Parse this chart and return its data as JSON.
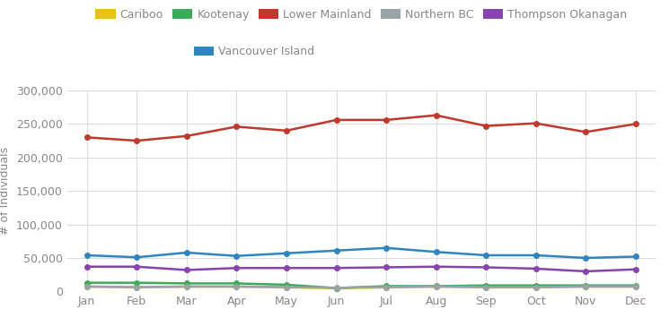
{
  "months": [
    "Jan",
    "Feb",
    "Mar",
    "Apr",
    "May",
    "Jun",
    "Jul",
    "Aug",
    "Sep",
    "Oct",
    "Nov",
    "Dec"
  ],
  "series": {
    "Cariboo": {
      "values": [
        7000,
        6000,
        7000,
        7000,
        6000,
        5000,
        6000,
        7000,
        6000,
        6000,
        7000,
        7000
      ],
      "color": "#E8C21A"
    },
    "Kootenay": {
      "values": [
        13000,
        13000,
        12000,
        12000,
        10000,
        5000,
        8000,
        8000,
        9000,
        9000,
        9000,
        9000
      ],
      "color": "#3BAB5A"
    },
    "Lower Mainland": {
      "values": [
        230000,
        225000,
        232000,
        246000,
        240000,
        256000,
        256000,
        263000,
        247000,
        251000,
        238000,
        250000
      ],
      "color": "#C0392B"
    },
    "Northern BC": {
      "values": [
        7500,
        6500,
        7500,
        7500,
        6500,
        5500,
        6500,
        7500,
        6500,
        6500,
        7500,
        7500
      ],
      "color": "#9AA3A8"
    },
    "Thompson Okanagan": {
      "values": [
        37000,
        37000,
        32000,
        35000,
        35000,
        35000,
        36000,
        37000,
        36000,
        34000,
        30000,
        33000
      ],
      "color": "#8844AD"
    },
    "Vancouver Island": {
      "values": [
        54000,
        51000,
        58000,
        53000,
        57000,
        61000,
        65000,
        59000,
        54000,
        54000,
        50000,
        52000
      ],
      "color": "#2E86C1"
    }
  },
  "ylabel": "# of Individuals",
  "ylim": [
    0,
    300000
  ],
  "yticks": [
    0,
    50000,
    100000,
    150000,
    200000,
    250000,
    300000
  ],
  "background_color": "#FFFFFF",
  "plot_bg_color": "#FFFFFF",
  "grid_color": "#DDDDDD",
  "legend_row1": [
    "Cariboo",
    "Kootenay",
    "Lower Mainland",
    "Northern BC",
    "Thompson Okanagan"
  ],
  "legend_row2": [
    "Vancouver Island"
  ],
  "tick_color": "#888888",
  "label_color": "#888888"
}
